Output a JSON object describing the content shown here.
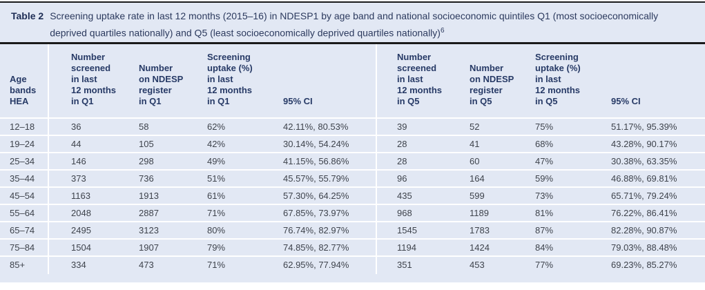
{
  "colors": {
    "table_background": "#e2e8f4",
    "rule_black": "#1a1a1a",
    "header_text_navy": "#273a66",
    "body_text": "#3e434c",
    "separator_white": "#ffffff"
  },
  "caption": {
    "label": "Table 2",
    "text": "Screening uptake rate in last 12 months (2015–16) in NDESP1 by age band and national socioeconomic quintiles Q1 (most socioeconomically deprived quartiles nationally) and Q5 (least socioeconomically deprived quartiles nationally)",
    "footnote_ref": "6"
  },
  "table": {
    "columns": [
      {
        "id": "age-bands-hea",
        "lines": [
          "Age",
          "bands",
          "HEA"
        ]
      },
      {
        "id": "q1-number-screened",
        "lines": [
          "Number",
          "screened",
          "in last",
          "12 months",
          "in Q1"
        ]
      },
      {
        "id": "q1-number-on-register",
        "lines": [
          "Number",
          "on NDESP",
          "register",
          "in Q1"
        ]
      },
      {
        "id": "q1-screening-uptake",
        "lines": [
          "Screening",
          "uptake (%)",
          "in last",
          "12 months",
          "in Q1"
        ]
      },
      {
        "id": "q1-95-ci",
        "lines": [
          "95% CI"
        ]
      },
      {
        "id": "q5-number-screened",
        "lines": [
          "Number",
          "screened",
          "in last",
          "12 months",
          "in Q5"
        ]
      },
      {
        "id": "q5-number-on-register",
        "lines": [
          "Number",
          "on NDESP",
          "register",
          "in Q5"
        ]
      },
      {
        "id": "q5-screening-uptake",
        "lines": [
          "Screening",
          "uptake (%)",
          "in last",
          "12 months",
          "in Q5"
        ]
      },
      {
        "id": "q5-95-ci",
        "lines": [
          "95% CI"
        ]
      }
    ],
    "rows": [
      [
        "12–18",
        "36",
        "58",
        "62%",
        "42.11%, 80.53%",
        "39",
        "52",
        "75%",
        "51.17%, 95.39%"
      ],
      [
        "19–24",
        "44",
        "105",
        "42%",
        "30.14%, 54.24%",
        "28",
        "41",
        "68%",
        "43.28%, 90.17%"
      ],
      [
        "25–34",
        "146",
        "298",
        "49%",
        "41.15%, 56.86%",
        "28",
        "60",
        "47%",
        "30.38%, 63.35%"
      ],
      [
        "35–44",
        "373",
        "736",
        "51%",
        "45.57%, 55.79%",
        "96",
        "164",
        "59%",
        "46.88%, 69.81%"
      ],
      [
        "45–54",
        "1163",
        "1913",
        "61%",
        "57.30%, 64.25%",
        "435",
        "599",
        "73%",
        "65.71%, 79.24%"
      ],
      [
        "55–64",
        "2048",
        "2887",
        "71%",
        "67.85%, 73.97%",
        "968",
        "1189",
        "81%",
        "76.22%, 86.41%"
      ],
      [
        "65–74",
        "2495",
        "3123",
        "80%",
        "76.74%, 82.97%",
        "1545",
        "1783",
        "87%",
        "82.28%, 90.87%"
      ],
      [
        "75–84",
        "1504",
        "1907",
        "79%",
        "74.85%, 82.77%",
        "1194",
        "1424",
        "84%",
        "79.03%, 88.48%"
      ],
      [
        "85+",
        "334",
        "473",
        "71%",
        "62.95%, 77.94%",
        "351",
        "453",
        "77%",
        "69.23%, 85.27%"
      ]
    ]
  }
}
